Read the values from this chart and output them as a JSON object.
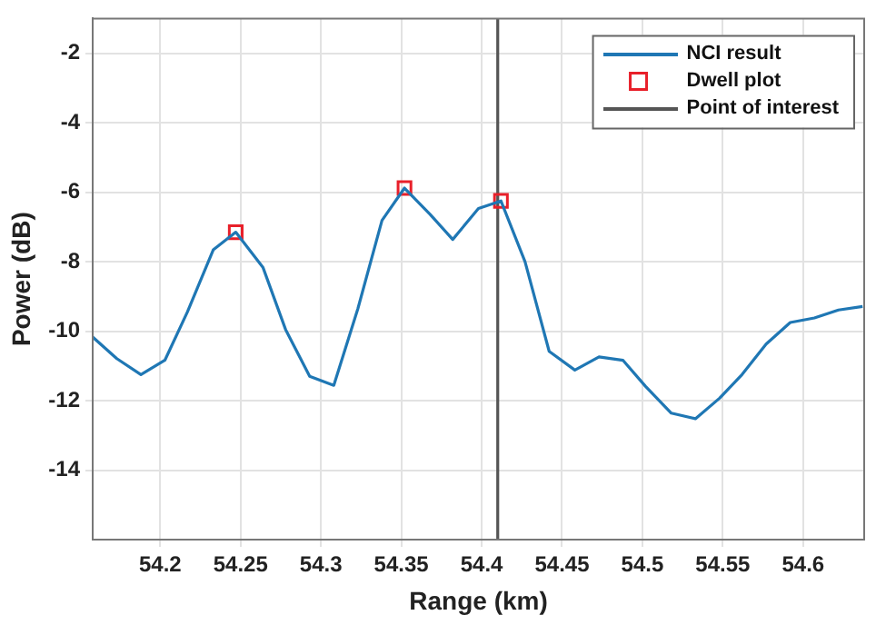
{
  "chart_data": {
    "type": "line",
    "xlabel": "Range (km)",
    "ylabel": "Power (dB)",
    "xlim": [
      54.158,
      54.638
    ],
    "xticks": [
      54.2,
      54.25,
      54.3,
      54.35,
      54.4,
      54.45,
      54.5,
      54.55,
      54.6
    ],
    "ylim": [
      -16,
      -1
    ],
    "yticks": [
      -14,
      -12,
      -10,
      -8,
      -6,
      -4,
      -2
    ],
    "grid": true,
    "legend": "top right",
    "series": [
      {
        "name": "NCI result",
        "type": "line",
        "color": "#1f77b4",
        "marker": "none",
        "x": [
          54.158,
          54.173,
          54.188,
          54.203,
          54.217,
          54.233,
          54.247,
          54.264,
          54.278,
          54.293,
          54.308,
          54.323,
          54.338,
          54.352,
          54.368,
          54.382,
          54.398,
          54.412,
          54.427,
          54.442,
          54.458,
          54.473,
          54.488,
          54.502,
          54.518,
          54.533,
          54.548,
          54.562,
          54.577,
          54.592,
          54.607,
          54.622,
          54.637
        ],
        "values": [
          -10.17,
          -10.79,
          -11.25,
          -10.83,
          -9.44,
          -7.66,
          -7.15,
          -8.17,
          -9.95,
          -11.3,
          -11.56,
          -9.35,
          -6.81,
          -5.88,
          -6.64,
          -7.36,
          -6.47,
          -6.25,
          -8.0,
          -10.58,
          -11.12,
          -10.74,
          -10.84,
          -11.59,
          -12.36,
          -12.52,
          -11.93,
          -11.25,
          -10.37,
          -9.75,
          -9.62,
          -9.39,
          -9.29
        ]
      },
      {
        "name": "Dwell plot",
        "type": "scatter",
        "color": "#e8202a",
        "marker": "square",
        "x": [
          54.247,
          54.352,
          54.412
        ],
        "values": [
          -7.15,
          -5.88,
          -6.25
        ]
      },
      {
        "name": "Point of interest",
        "type": "line",
        "color": "#555555",
        "marker": "none",
        "x": [
          54.41,
          54.41
        ],
        "values": [
          -16,
          -1
        ]
      }
    ]
  }
}
